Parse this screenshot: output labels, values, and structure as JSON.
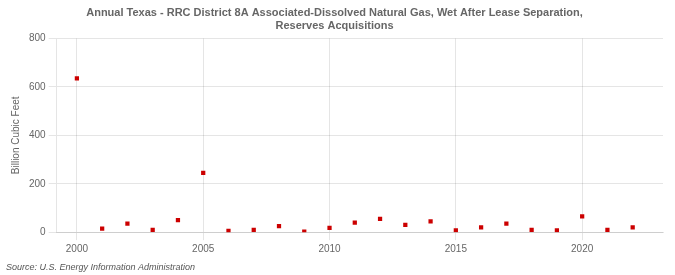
{
  "chart_data": {
    "type": "scatter",
    "title": "Annual Texas - RRC District 8A Associated-Dissolved Natural Gas, Wet After Lease Separation,\nReserves Acquisitions",
    "ylabel": "Billion Cubic Feet",
    "source": "Source: U.S. Energy Information Administration",
    "x": [
      2000,
      2001,
      2002,
      2003,
      2004,
      2005,
      2006,
      2007,
      2008,
      2009,
      2010,
      2011,
      2012,
      2013,
      2014,
      2015,
      2016,
      2017,
      2018,
      2019,
      2020,
      2021,
      2022
    ],
    "values": [
      635,
      15,
      35,
      10,
      50,
      245,
      5,
      10,
      25,
      2,
      18,
      40,
      55,
      30,
      45,
      8,
      20,
      35,
      10,
      8,
      65,
      10,
      20
    ],
    "color": "#cc0000",
    "marker": "square",
    "xlim": [
      1999.2,
      2023.2
    ],
    "xticks": [
      2000,
      2005,
      2010,
      2015,
      2020
    ],
    "ylim": [
      0,
      800
    ],
    "yticks": [
      0,
      200,
      400,
      600,
      800
    ],
    "grid": true
  }
}
